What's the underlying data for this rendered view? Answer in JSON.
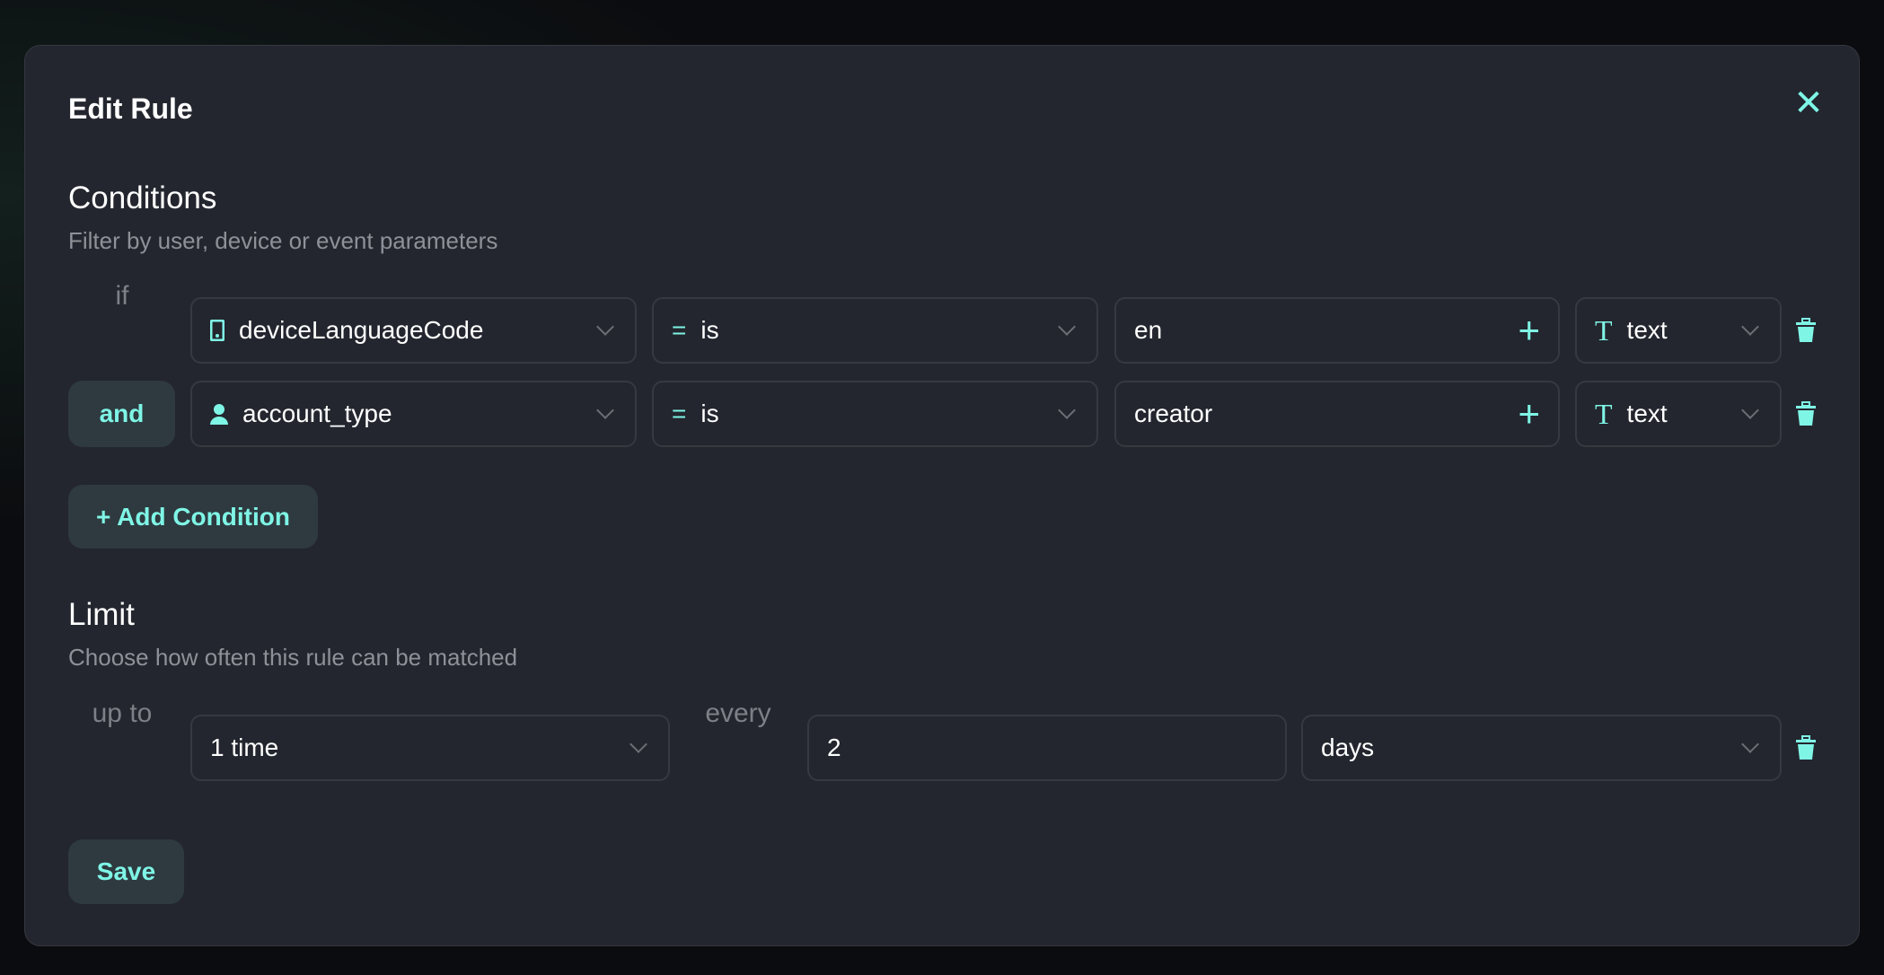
{
  "modal": {
    "title": "Edit Rule",
    "close_icon": "close-icon"
  },
  "conditions": {
    "heading": "Conditions",
    "subtitle": "Filter by user, device or event parameters",
    "rows": [
      {
        "connector": "if",
        "field": "deviceLanguageCode",
        "field_icon": "phone-icon",
        "operator": "is",
        "operator_icon": "equals-icon",
        "value": "en",
        "type": "text",
        "type_icon": "text-type-icon"
      },
      {
        "connector": "and",
        "field": "account_type",
        "field_icon": "user-icon",
        "operator": "is",
        "operator_icon": "equals-icon",
        "value": "creator",
        "type": "text",
        "type_icon": "text-type-icon"
      }
    ],
    "add_label": "+ Add Condition"
  },
  "limit": {
    "heading": "Limit",
    "subtitle": "Choose how often this rule can be matched",
    "prefix": "up to",
    "count": "1 time",
    "every_label": "every",
    "interval": "2",
    "unit": "days"
  },
  "save_label": "Save",
  "colors": {
    "accent": "#7ff5e6",
    "background": "#23262e",
    "button": "#2e3a3f"
  }
}
